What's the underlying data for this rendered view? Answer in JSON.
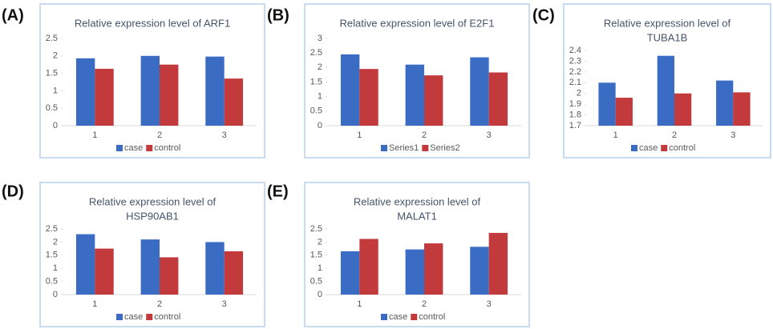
{
  "chart_data": [
    {
      "type": "bar",
      "panel_label": "(A)",
      "title": [
        "Relative expression level of ARF1"
      ],
      "categories": [
        "1",
        "2",
        "3"
      ],
      "series": [
        {
          "name": "case",
          "color": "#3a6cc4",
          "values": [
            1.93,
            2.0,
            1.98
          ]
        },
        {
          "name": "control",
          "color": "#c23a3c",
          "values": [
            1.63,
            1.75,
            1.35
          ]
        }
      ],
      "ylim": [
        0,
        2.5
      ],
      "yticks": [
        0,
        0.5,
        1,
        1.5,
        2,
        2.5
      ]
    },
    {
      "type": "bar",
      "panel_label": "(B)",
      "title": [
        "Relative expression level of E2F1"
      ],
      "categories": [
        "1",
        "2",
        "3"
      ],
      "series": [
        {
          "name": "Series1",
          "color": "#3a6cc4",
          "values": [
            2.45,
            2.1,
            2.35
          ]
        },
        {
          "name": "Series2",
          "color": "#c23a3c",
          "values": [
            1.95,
            1.73,
            1.83
          ]
        }
      ],
      "ylim": [
        0,
        3
      ],
      "yticks": [
        0,
        0.5,
        1,
        1.5,
        2,
        2.5,
        3
      ]
    },
    {
      "type": "bar",
      "panel_label": "(C)",
      "title": [
        "Relative expression level of",
        "TUBA1B"
      ],
      "categories": [
        "1",
        "2",
        "3"
      ],
      "series": [
        {
          "name": "case",
          "color": "#3a6cc4",
          "values": [
            2.1,
            2.35,
            2.12
          ]
        },
        {
          "name": "control",
          "color": "#c23a3c",
          "values": [
            1.96,
            2.0,
            2.01
          ]
        }
      ],
      "ylim": [
        1.7,
        2.4
      ],
      "yticks": [
        1.7,
        1.8,
        1.9,
        2,
        2.1,
        2.2,
        2.3,
        2.4
      ]
    },
    {
      "type": "bar",
      "panel_label": "(D)",
      "title": [
        "Relative expression level of",
        "HSP90AB1"
      ],
      "categories": [
        "1",
        "2",
        "3"
      ],
      "series": [
        {
          "name": "case",
          "color": "#3a6cc4",
          "values": [
            2.3,
            2.1,
            2.0
          ]
        },
        {
          "name": "control",
          "color": "#c23a3c",
          "values": [
            1.75,
            1.42,
            1.65
          ]
        }
      ],
      "ylim": [
        0,
        2.5
      ],
      "yticks": [
        0,
        0.5,
        1,
        1.5,
        2,
        2.5
      ]
    },
    {
      "type": "bar",
      "panel_label": "(E)",
      "title": [
        "Relative expression level of",
        "MALAT1"
      ],
      "categories": [
        "1",
        "2",
        "3"
      ],
      "series": [
        {
          "name": "case",
          "color": "#3a6cc4",
          "values": [
            1.65,
            1.72,
            1.82
          ]
        },
        {
          "name": "control",
          "color": "#c23a3c",
          "values": [
            2.12,
            1.95,
            2.35
          ]
        }
      ],
      "ylim": [
        0,
        2.5
      ],
      "yticks": [
        0,
        0.5,
        1,
        1.5,
        2,
        2.5
      ]
    }
  ]
}
